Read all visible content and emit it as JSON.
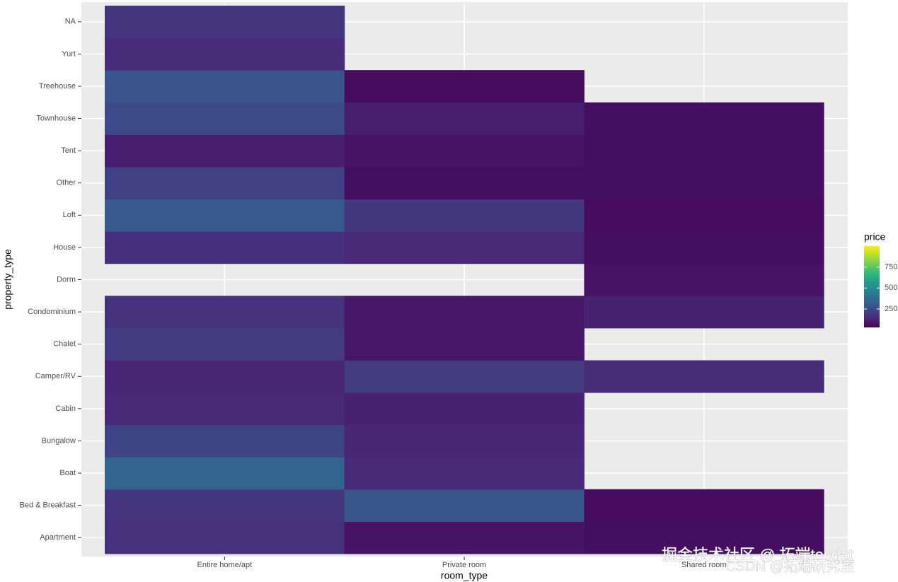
{
  "chart_data": {
    "type": "heatmap",
    "x_label": "room_type",
    "y_label": "property_type",
    "x_categories": [
      "Entire home/apt",
      "Private room",
      "Shared room"
    ],
    "y_categories": [
      "Apartment",
      "Bed & Breakfast",
      "Boat",
      "Bungalow",
      "Cabin",
      "Camper/RV",
      "Chalet",
      "Condominium",
      "Dorm",
      "House",
      "Loft",
      "Other",
      "Tent",
      "Townhouse",
      "Treehouse",
      "Yurt",
      "NA"
    ],
    "values": [
      [
        170,
        80,
        70
      ],
      [
        180,
        290,
        60
      ],
      [
        340,
        140,
        null
      ],
      [
        230,
        130,
        null
      ],
      [
        140,
        120,
        null
      ],
      [
        130,
        200,
        150
      ],
      [
        200,
        90,
        null
      ],
      [
        170,
        90,
        120
      ],
      [
        null,
        null,
        80
      ],
      [
        160,
        140,
        70
      ],
      [
        300,
        190,
        60
      ],
      [
        220,
        70,
        70
      ],
      [
        110,
        80,
        70
      ],
      [
        250,
        110,
        70
      ],
      [
        280,
        60,
        null
      ],
      [
        150,
        null,
        null
      ],
      [
        180,
        null,
        null
      ]
    ],
    "legend_title": "price",
    "clim": [
      30,
      1000
    ],
    "cticks": [
      250,
      500,
      750
    ],
    "colormap": "viridis",
    "grid": true,
    "watermarks": [
      "掘金技术社区 @ 拓端tecdat",
      "CSDN @拓端研究室"
    ]
  }
}
